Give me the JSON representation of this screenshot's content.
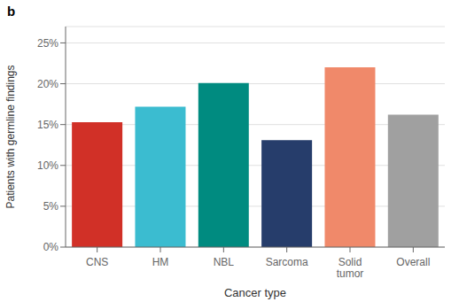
{
  "chart_data": {
    "type": "bar",
    "title": "b",
    "xlabel": "Cancer type",
    "ylabel": "Patients with germline findings",
    "categories": [
      "CNS",
      "HM",
      "NBL",
      "Sarcoma",
      "Solid\ntumor",
      "Overall"
    ],
    "values": [
      0.153,
      0.172,
      0.201,
      0.131,
      0.22,
      0.162
    ],
    "colors": [
      "#d13027",
      "#3bbcd0",
      "#008b80",
      "#263d6b",
      "#f0896a",
      "#a0a0a0"
    ],
    "ylim": [
      0,
      0.27
    ],
    "yticks": [
      {
        "value": 0,
        "label": "0%"
      },
      {
        "value": 0.05,
        "label": "5%"
      },
      {
        "value": 0.1,
        "label": "10%"
      },
      {
        "value": 0.15,
        "label": "15%"
      },
      {
        "value": 0.2,
        "label": "20%"
      },
      {
        "value": 0.25,
        "label": "25%"
      }
    ],
    "grid": true
  }
}
